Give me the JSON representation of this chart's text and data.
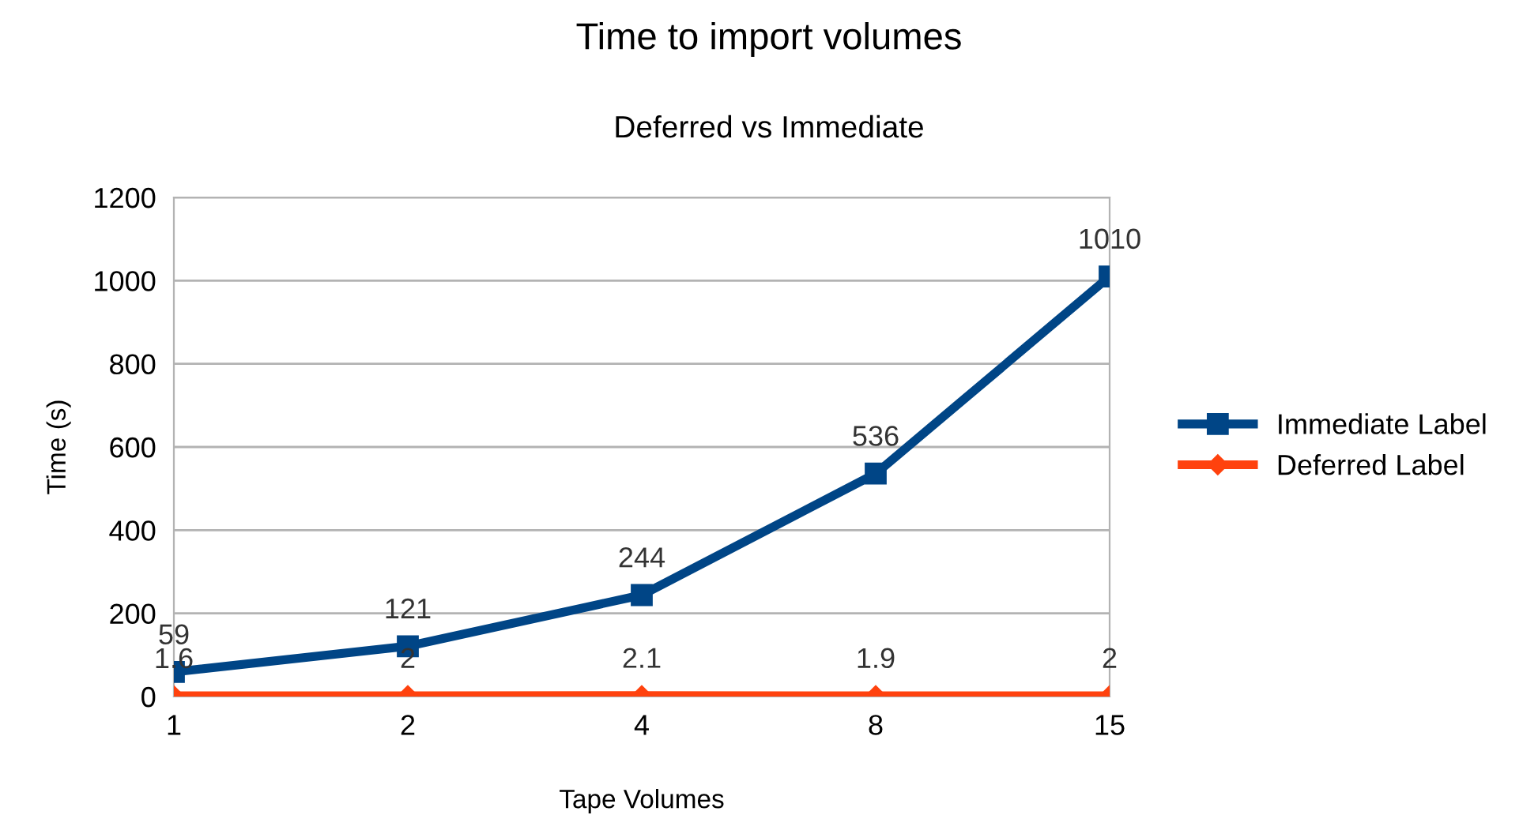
{
  "chart_data": {
    "type": "line",
    "title": "Time to import volumes",
    "subtitle": "Deferred vs Immediate",
    "xlabel": "Tape Volumes",
    "ylabel": "Time (s)",
    "categories": [
      "1",
      "2",
      "4",
      "8",
      "15"
    ],
    "series": [
      {
        "name": "Immediate Label",
        "color": "#004586",
        "marker": "square",
        "values": [
          59,
          121,
          244,
          536,
          1010
        ]
      },
      {
        "name": "Deferred Label",
        "color": "#ff420e",
        "marker": "diamond",
        "values": [
          1.6,
          2,
          2.1,
          1.9,
          2
        ]
      }
    ],
    "ylim": [
      0,
      1200
    ],
    "yticks": [
      0,
      200,
      400,
      600,
      800,
      1000,
      1200
    ],
    "grid": "y",
    "legend": "right",
    "data_labels": true,
    "line_style": "solid"
  }
}
